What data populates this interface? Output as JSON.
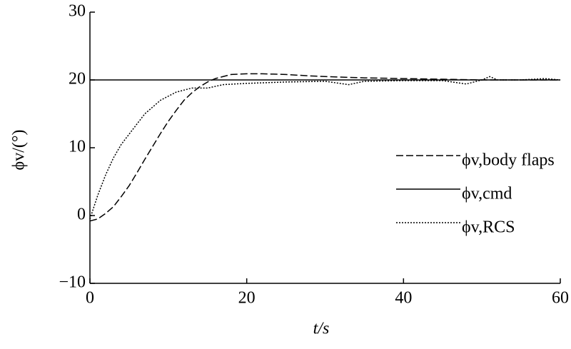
{
  "chart_data": {
    "type": "line",
    "xlabel": "t/s",
    "ylabel": "ϕv/(°)",
    "xlim": [
      0,
      60
    ],
    "ylim": [
      -10,
      30
    ],
    "xticks": [
      0,
      20,
      40,
      60
    ],
    "yticks": [
      {
        "value": -10,
        "label": "−10"
      },
      0,
      10,
      20,
      30
    ],
    "legend": "right",
    "series": [
      {
        "name": "ϕv,body flaps",
        "color": "#000000",
        "dash": "10,4",
        "x": [
          0,
          1,
          2,
          3,
          4,
          5,
          6,
          7,
          8,
          9,
          10,
          11,
          12,
          13,
          14,
          15,
          16,
          18,
          20,
          22,
          25,
          28,
          30,
          35,
          40,
          45,
          50,
          55,
          60
        ],
        "values": [
          -0.8,
          -0.5,
          0.3,
          1.3,
          2.8,
          4.4,
          6.3,
          8.3,
          10.2,
          12.1,
          13.9,
          15.5,
          17,
          18.1,
          19,
          19.7,
          20.2,
          20.8,
          20.9,
          20.9,
          20.8,
          20.6,
          20.5,
          20.3,
          20.2,
          20.1,
          20,
          20,
          20
        ]
      },
      {
        "name": "ϕv,cmd",
        "color": "#000000",
        "dash": "none",
        "x": [
          0,
          60
        ],
        "values": [
          20,
          20
        ]
      },
      {
        "name": "ϕv,RCS",
        "color": "#000000",
        "dash": "2,2",
        "x": [
          0,
          1,
          2,
          3,
          4,
          5,
          7,
          9,
          11,
          13,
          15,
          17,
          20,
          25,
          30,
          33,
          35,
          40,
          45,
          48,
          50,
          51,
          52,
          55,
          58,
          60
        ],
        "values": [
          -0.5,
          3,
          6,
          8.5,
          10.5,
          12,
          15,
          17,
          18.2,
          18.8,
          18.8,
          19.3,
          19.5,
          19.7,
          19.8,
          19.3,
          19.8,
          19.9,
          19.9,
          19.4,
          20,
          20.5,
          20,
          20,
          20.2,
          20
        ]
      }
    ]
  }
}
